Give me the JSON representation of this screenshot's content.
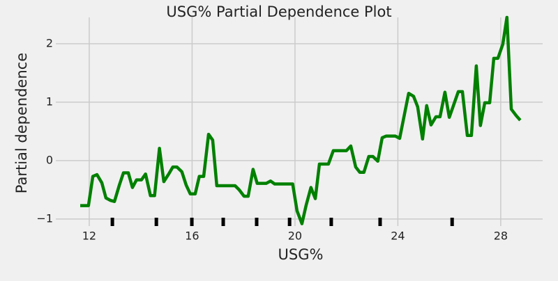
{
  "chart_data": {
    "type": "line",
    "title": "USG% Partial Dependence Plot",
    "x_label": "USG%",
    "y_label": "Partial dependence",
    "color": "#008000",
    "grid": true,
    "x": [
      11.65,
      11.97,
      12.14,
      12.3,
      12.49,
      12.65,
      12.82,
      12.98,
      13.17,
      13.33,
      13.52,
      13.68,
      13.84,
      14.03,
      14.19,
      14.38,
      14.54,
      14.73,
      14.9,
      15.09,
      15.25,
      15.41,
      15.6,
      15.77,
      15.93,
      16.12,
      16.28,
      16.45,
      16.64,
      16.8,
      16.96,
      17.15,
      17.31,
      17.5,
      17.67,
      17.83,
      18.02,
      18.18,
      18.37,
      18.53,
      18.69,
      18.88,
      19.05,
      19.21,
      19.4,
      19.56,
      19.75,
      19.91,
      20.08,
      20.27,
      20.43,
      20.62,
      20.79,
      20.95,
      21.14,
      21.3,
      21.49,
      21.65,
      21.82,
      22.0,
      22.17,
      22.36,
      22.52,
      22.68,
      22.87,
      23.03,
      23.22,
      23.39,
      23.55,
      23.74,
      23.9,
      24.07,
      24.26,
      24.42,
      24.61,
      24.77,
      24.96,
      25.12,
      25.29,
      25.48,
      25.64,
      25.83,
      26.0,
      26.16,
      26.35,
      26.51,
      26.7,
      26.86,
      27.05,
      27.21,
      27.38,
      27.57,
      27.73,
      27.89,
      28.08,
      28.24,
      28.41,
      28.6,
      28.76
    ],
    "values": [
      -0.77,
      -0.77,
      -0.27,
      -0.24,
      -0.38,
      -0.64,
      -0.68,
      -0.7,
      -0.42,
      -0.21,
      -0.21,
      -0.46,
      -0.33,
      -0.33,
      -0.23,
      -0.6,
      -0.6,
      0.21,
      -0.36,
      -0.23,
      -0.11,
      -0.11,
      -0.19,
      -0.42,
      -0.57,
      -0.57,
      -0.27,
      -0.27,
      0.45,
      0.35,
      -0.43,
      -0.43,
      -0.43,
      -0.43,
      -0.43,
      -0.5,
      -0.61,
      -0.61,
      -0.15,
      -0.39,
      -0.39,
      -0.39,
      -0.35,
      -0.4,
      -0.4,
      -0.4,
      -0.4,
      -0.4,
      -0.86,
      -1.08,
      -0.77,
      -0.46,
      -0.65,
      -0.06,
      -0.06,
      -0.06,
      0.17,
      0.17,
      0.17,
      0.17,
      0.25,
      -0.11,
      -0.2,
      -0.2,
      0.07,
      0.07,
      -0.01,
      0.39,
      0.42,
      0.42,
      0.42,
      0.38,
      0.8,
      1.15,
      1.1,
      0.92,
      0.37,
      0.94,
      0.61,
      0.75,
      0.75,
      1.17,
      0.74,
      0.94,
      1.18,
      1.18,
      0.43,
      0.43,
      1.62,
      0.6,
      0.99,
      0.99,
      1.75,
      1.75,
      1.99,
      2.45,
      0.88,
      0.77,
      0.69
    ],
    "rug_x": [
      12.9,
      14.61,
      15.99,
      17.21,
      18.51,
      19.79,
      21.41,
      23.31,
      26.11
    ],
    "xlim": [
      10.7,
      29.63
    ],
    "ylim": [
      -1.12,
      2.45
    ],
    "xticks": [
      12,
      16,
      20,
      24,
      28
    ],
    "yticks": [
      {
        "value": -1,
        "label": "−1"
      },
      0,
      1,
      2
    ]
  }
}
